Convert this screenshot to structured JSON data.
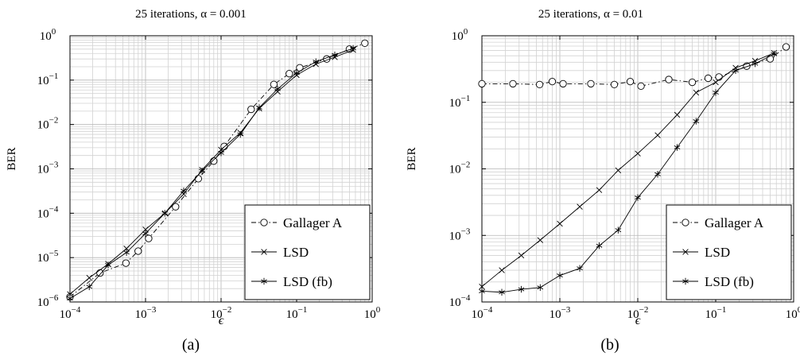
{
  "chart_data": [
    {
      "type": "line",
      "title": "25 iterations, α = 0.001",
      "xlabel": "ϵ",
      "ylabel": "BER",
      "caption": "(a)",
      "xscale": "log",
      "yscale": "log",
      "xlim": [
        0.0001,
        1
      ],
      "ylim": [
        1e-06,
        1
      ],
      "grid": true,
      "legend_position": "bottom-right",
      "x_ticks": [
        {
          "value": 0.0001,
          "base": "10",
          "exp": "−4"
        },
        {
          "value": 0.001,
          "base": "10",
          "exp": "−3"
        },
        {
          "value": 0.01,
          "base": "10",
          "exp": "−2"
        },
        {
          "value": 0.1,
          "base": "10",
          "exp": "−1"
        },
        {
          "value": 1,
          "base": "10",
          "exp": "0"
        }
      ],
      "y_ticks": [
        {
          "value": 1e-06,
          "base": "10",
          "exp": "−6"
        },
        {
          "value": 1e-05,
          "base": "10",
          "exp": "−5"
        },
        {
          "value": 0.0001,
          "base": "10",
          "exp": "−4"
        },
        {
          "value": 0.001,
          "base": "10",
          "exp": "−3"
        },
        {
          "value": 0.01,
          "base": "10",
          "exp": "−2"
        },
        {
          "value": 0.1,
          "base": "10",
          "exp": "−1"
        },
        {
          "value": 1,
          "base": "10",
          "exp": "0"
        }
      ],
      "series": [
        {
          "name": "Gallager A",
          "marker": "circle",
          "dash": "6,3,1.5,3",
          "x": [
            0.0001,
            0.00025,
            0.00055,
            0.0008,
            0.0011,
            0.0025,
            0.005,
            0.008,
            0.011,
            0.025,
            0.05,
            0.08,
            0.11,
            0.25,
            0.5,
            0.8
          ],
          "y": [
            1.3e-06,
            4.5e-06,
            7.5e-06,
            1.4e-05,
            2.7e-05,
            0.00014,
            0.0006,
            0.0015,
            0.0032,
            0.022,
            0.08,
            0.14,
            0.19,
            0.3,
            0.5,
            0.68
          ]
        },
        {
          "name": "LSD",
          "marker": "x",
          "dash": "",
          "x": [
            0.0001,
            0.00018,
            0.00032,
            0.00056,
            0.001,
            0.0018,
            0.0032,
            0.0056,
            0.01,
            0.018,
            0.032,
            0.056,
            0.1,
            0.18,
            0.32,
            0.56
          ],
          "y": [
            1.5e-06,
            3.5e-06,
            7.2e-06,
            1.6e-05,
            4.3e-05,
            0.0001,
            0.00027,
            0.00095,
            0.0027,
            0.0065,
            0.023,
            0.055,
            0.13,
            0.23,
            0.33,
            0.48
          ]
        },
        {
          "name": "LSD (fb)",
          "marker": "star",
          "dash": "",
          "x": [
            0.0001,
            0.00018,
            0.00032,
            0.00056,
            0.001,
            0.0018,
            0.0032,
            0.0056,
            0.01,
            0.018,
            0.032,
            0.056,
            0.1,
            0.18,
            0.32,
            0.56
          ],
          "y": [
            1.2e-06,
            2.2e-06,
            6.8e-06,
            1.3e-05,
            3.5e-05,
            0.0001,
            0.00032,
            0.0009,
            0.0023,
            0.006,
            0.024,
            0.063,
            0.145,
            0.26,
            0.37,
            0.52
          ]
        }
      ]
    },
    {
      "type": "line",
      "title": "25 iterations, α = 0.01",
      "xlabel": "ϵ",
      "ylabel": "BER",
      "caption": "(b)",
      "xscale": "log",
      "yscale": "log",
      "xlim": [
        0.0001,
        1
      ],
      "ylim": [
        0.0001,
        1
      ],
      "grid": true,
      "legend_position": "bottom-right",
      "x_ticks": [
        {
          "value": 0.0001,
          "base": "10",
          "exp": "−4"
        },
        {
          "value": 0.001,
          "base": "10",
          "exp": "−3"
        },
        {
          "value": 0.01,
          "base": "10",
          "exp": "−2"
        },
        {
          "value": 0.1,
          "base": "10",
          "exp": "−1"
        },
        {
          "value": 1,
          "base": "10",
          "exp": "0"
        }
      ],
      "y_ticks": [
        {
          "value": 0.0001,
          "base": "10",
          "exp": "−4"
        },
        {
          "value": 0.001,
          "base": "10",
          "exp": "−3"
        },
        {
          "value": 0.01,
          "base": "10",
          "exp": "−2"
        },
        {
          "value": 0.1,
          "base": "10",
          "exp": "−1"
        },
        {
          "value": 1,
          "base": "10",
          "exp": "0"
        }
      ],
      "series": [
        {
          "name": "Gallager A",
          "marker": "circle",
          "dash": "6,3,1.5,3",
          "x": [
            0.0001,
            0.00025,
            0.00055,
            0.0008,
            0.0011,
            0.0025,
            0.005,
            0.008,
            0.011,
            0.025,
            0.05,
            0.08,
            0.11,
            0.25,
            0.5,
            0.8
          ],
          "y": [
            0.19,
            0.19,
            0.185,
            0.205,
            0.19,
            0.19,
            0.185,
            0.205,
            0.175,
            0.22,
            0.2,
            0.23,
            0.24,
            0.35,
            0.45,
            0.68
          ]
        },
        {
          "name": "LSD",
          "marker": "x",
          "dash": "",
          "x": [
            0.0001,
            0.00018,
            0.00032,
            0.00056,
            0.001,
            0.0018,
            0.0032,
            0.0056,
            0.01,
            0.018,
            0.032,
            0.056,
            0.1,
            0.18,
            0.32,
            0.56
          ],
          "y": [
            0.00017,
            0.0003,
            0.0005,
            0.00085,
            0.0015,
            0.0027,
            0.0048,
            0.0095,
            0.017,
            0.032,
            0.065,
            0.14,
            0.2,
            0.33,
            0.42,
            0.55
          ]
        },
        {
          "name": "LSD (fb)",
          "marker": "star",
          "dash": "",
          "x": [
            0.0001,
            0.00018,
            0.00032,
            0.00056,
            0.001,
            0.0018,
            0.0032,
            0.0056,
            0.01,
            0.018,
            0.032,
            0.056,
            0.1,
            0.18,
            0.32,
            0.56
          ],
          "y": [
            0.000145,
            0.00014,
            0.000155,
            0.000165,
            0.00025,
            0.00032,
            0.0007,
            0.0012,
            0.0037,
            0.0083,
            0.021,
            0.052,
            0.14,
            0.3,
            0.38,
            0.53
          ]
        }
      ]
    }
  ]
}
